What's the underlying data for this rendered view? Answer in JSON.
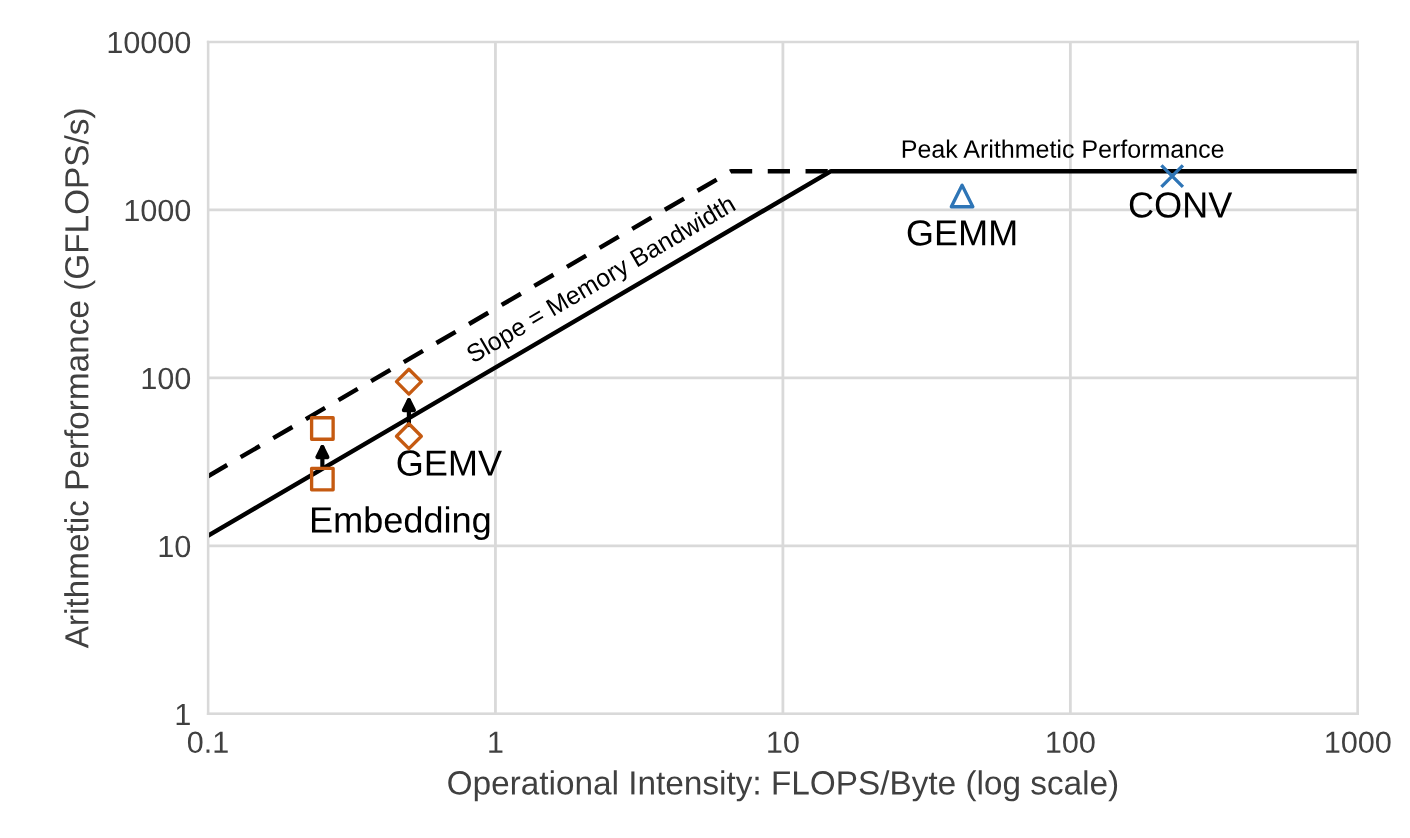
{
  "chart_data": {
    "type": "line",
    "xlabel": "Operational Intensity: FLOPS/Byte (log scale)",
    "ylabel": "Arithmetic Performance (GFLOPS/s)",
    "log": "xy",
    "grid": true,
    "xlim": [
      0.1,
      1000
    ],
    "xticks": [
      0.1,
      1,
      10,
      100,
      1000
    ],
    "ylim": [
      1,
      10000
    ],
    "yticks": [
      1,
      10,
      100,
      1000,
      10000
    ],
    "series": [
      {
        "color": "#000000",
        "line_style": "solid",
        "marker": "none",
        "x": [
          0.1,
          14.7,
          1000
        ],
        "values": [
          11.5,
          1700,
          1700
        ]
      },
      {
        "color": "#000000",
        "line_style": "dashed",
        "marker": "none",
        "x": [
          0.1,
          6.6,
          14.7
        ],
        "values": [
          26,
          1700,
          1700
        ]
      },
      {
        "type": "scatter",
        "color": "#c55a11",
        "marker": "square",
        "x": [
          0.25,
          0.25
        ],
        "values": [
          25,
          50
        ]
      },
      {
        "type": "scatter",
        "color": "#c55a11",
        "marker": "diamond",
        "x": [
          0.5,
          0.5
        ],
        "values": [
          45,
          95
        ]
      },
      {
        "type": "scatter",
        "color": "#2e75b6",
        "marker": "triangle",
        "x": [
          42
        ],
        "values": [
          1210
        ]
      },
      {
        "type": "scatter",
        "color": "#2e75b6",
        "marker": "cross",
        "x": [
          226
        ],
        "values": [
          1590
        ]
      }
    ],
    "annotations": [
      {
        "text": "Embedding",
        "x": 0.25,
        "y": 25
      },
      {
        "text": "GEMV",
        "x": 0.5,
        "y": 45
      },
      {
        "text": "GEMM",
        "x": 42,
        "y": 1210
      },
      {
        "text": "CONV",
        "x": 226,
        "y": 1590
      },
      {
        "text": "Peak Arithmetic Performance",
        "x": 94,
        "y": 1700
      },
      {
        "text": "Slope = Memory Bandwidth",
        "x": 2.5,
        "y": 288
      }
    ]
  }
}
